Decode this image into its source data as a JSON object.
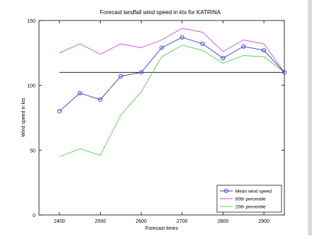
{
  "chart_data": {
    "type": "line",
    "title": "Forecast landfall wind speed in kts for KATRINA",
    "xlabel": "Forecast times",
    "ylabel": "Wind speed in kts",
    "xlim": [
      2350,
      2950
    ],
    "ylim": [
      0,
      150
    ],
    "xticks": [
      2400,
      2500,
      2600,
      2700,
      2800,
      2900
    ],
    "yticks": [
      0,
      50,
      100,
      150
    ],
    "x": [
      2400,
      2450,
      2500,
      2550,
      2600,
      2650,
      2700,
      2750,
      2800,
      2850,
      2900,
      2950
    ],
    "series": [
      {
        "name": "Mean wind speed",
        "color": "#3a3acc",
        "marker": "circle",
        "values": [
          80,
          94,
          89,
          107,
          110,
          129,
          137,
          132,
          121,
          130,
          127,
          110
        ]
      },
      {
        "name": "80th percentile",
        "color": "#cc55cc",
        "marker": "none",
        "values": [
          125,
          132,
          124,
          132,
          129,
          135,
          144,
          141,
          126,
          135,
          132,
          110
        ]
      },
      {
        "name": "20th percentile",
        "color": "#55cc55",
        "marker": "none",
        "values": [
          45,
          51,
          46,
          77,
          95,
          122,
          131,
          127,
          117,
          123,
          122,
          110
        ]
      }
    ],
    "reference_line": {
      "y": 110,
      "color": "#222222"
    },
    "legend": {
      "position": "bottom-right"
    },
    "grid": false
  }
}
